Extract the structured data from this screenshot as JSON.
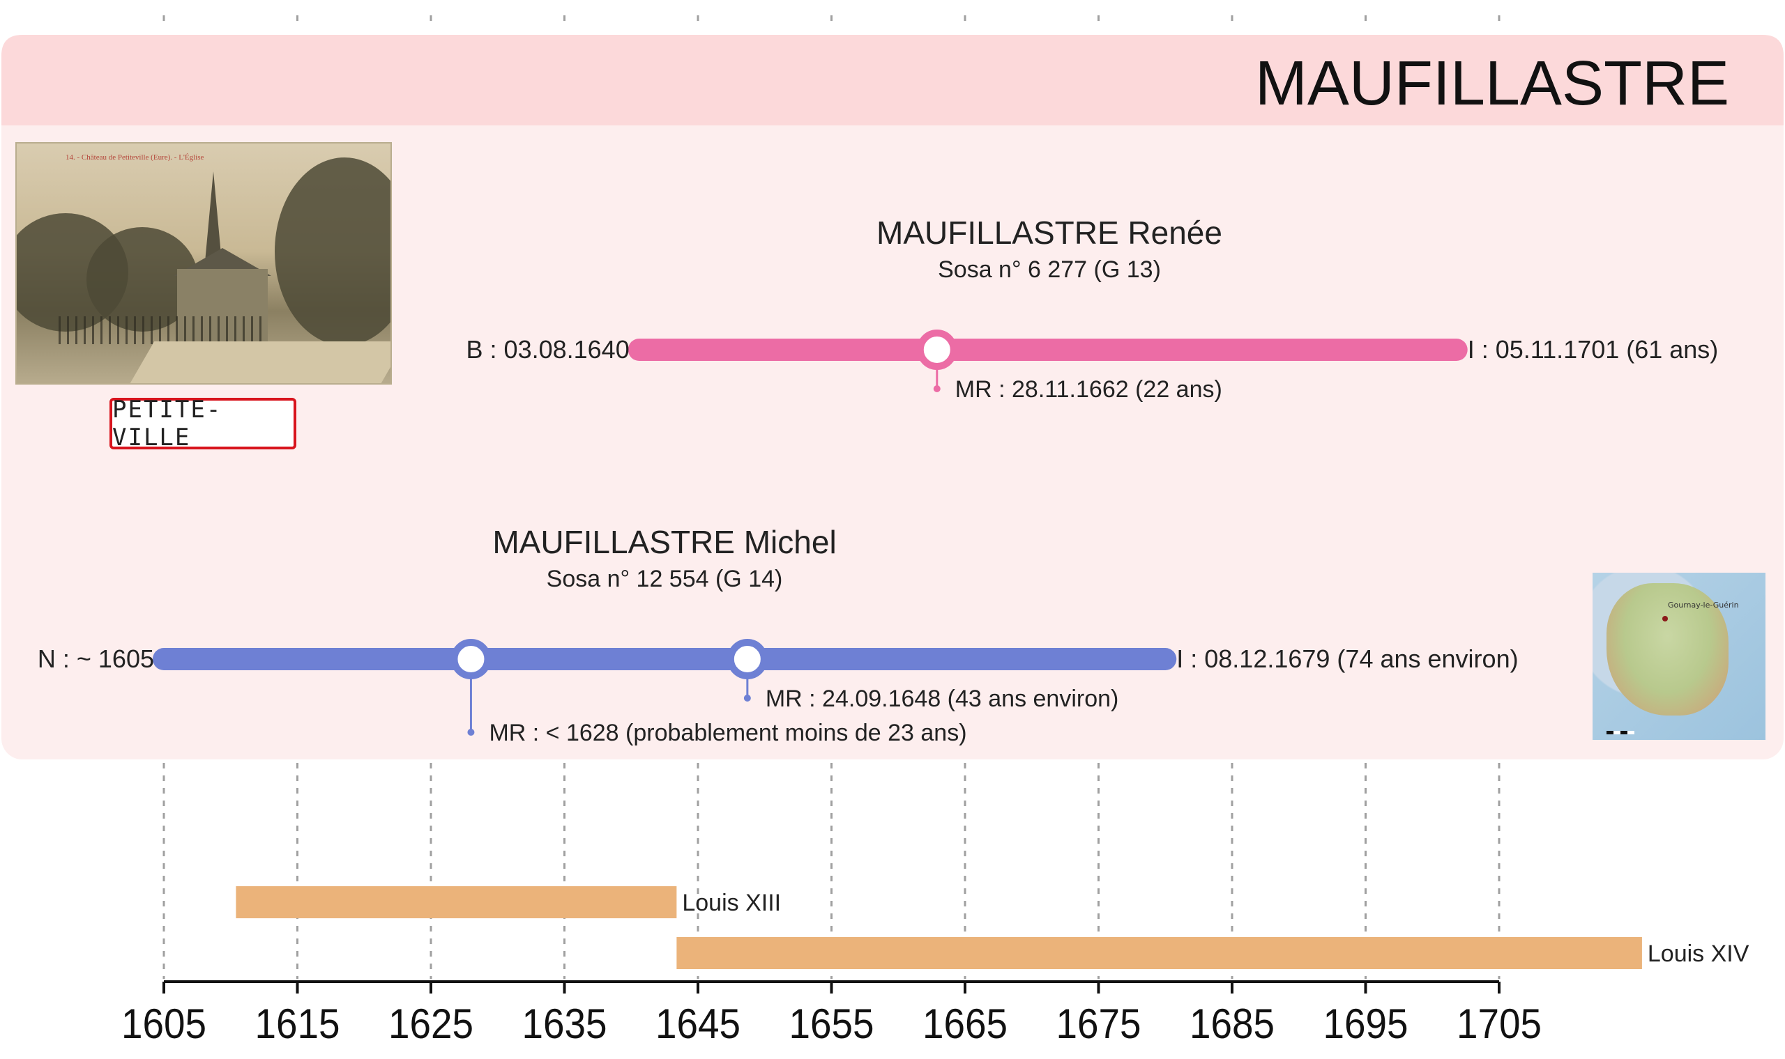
{
  "family_name": "MAUFILLASTRE",
  "place_sign": "PETITE-VILLE",
  "photo_caption": "14. - Château de Petiteville (Eure). - L'Église",
  "map_label": "Gournay-le-Guérin",
  "colors": {
    "banner": "#fcd9da",
    "panel": "#fdeeee",
    "person_1_bar": "#ec6ca5",
    "person_2_bar": "#6e80d4",
    "reign_bar": "#ebb37a",
    "gridline": "#a0a0a0"
  },
  "chart_data": {
    "type": "timeline",
    "x_axis": {
      "ticks": [
        1605,
        1615,
        1625,
        1635,
        1645,
        1655,
        1665,
        1675,
        1685,
        1695,
        1705
      ],
      "grid": "dashed vertical lines"
    },
    "persons": [
      {
        "name": "MAUFILLASTRE Renée",
        "sosa": "Sosa n° 6 277 (G 13)",
        "start": 1640.6,
        "end": 1701.8,
        "start_label": "B : 03.08.1640",
        "end_label": "I : 05.11.1701 (61 ans)",
        "events": [
          {
            "year": 1662.9,
            "label": "MR : 28.11.1662 (22 ans)"
          }
        ]
      },
      {
        "name": "MAUFILLASTRE Michel",
        "sosa": "Sosa n° 12 554 (G 14)",
        "start": 1605,
        "end": 1680.0,
        "start_label": "N : ~ 1605",
        "end_label": "I : 08.12.1679 (74 ans environ)",
        "events": [
          {
            "year": 1628,
            "label": "MR : < 1628 (probablement moins de 23 ans)"
          },
          {
            "year": 1648.7,
            "label": "MR : 24.09.1648 (43 ans environ)"
          }
        ]
      }
    ],
    "reigns": [
      {
        "name": "Louis XIII",
        "start": 1610.4,
        "end": 1643.4
      },
      {
        "name": "Louis XIV",
        "start": 1643.4,
        "end": 1715.7
      }
    ]
  }
}
